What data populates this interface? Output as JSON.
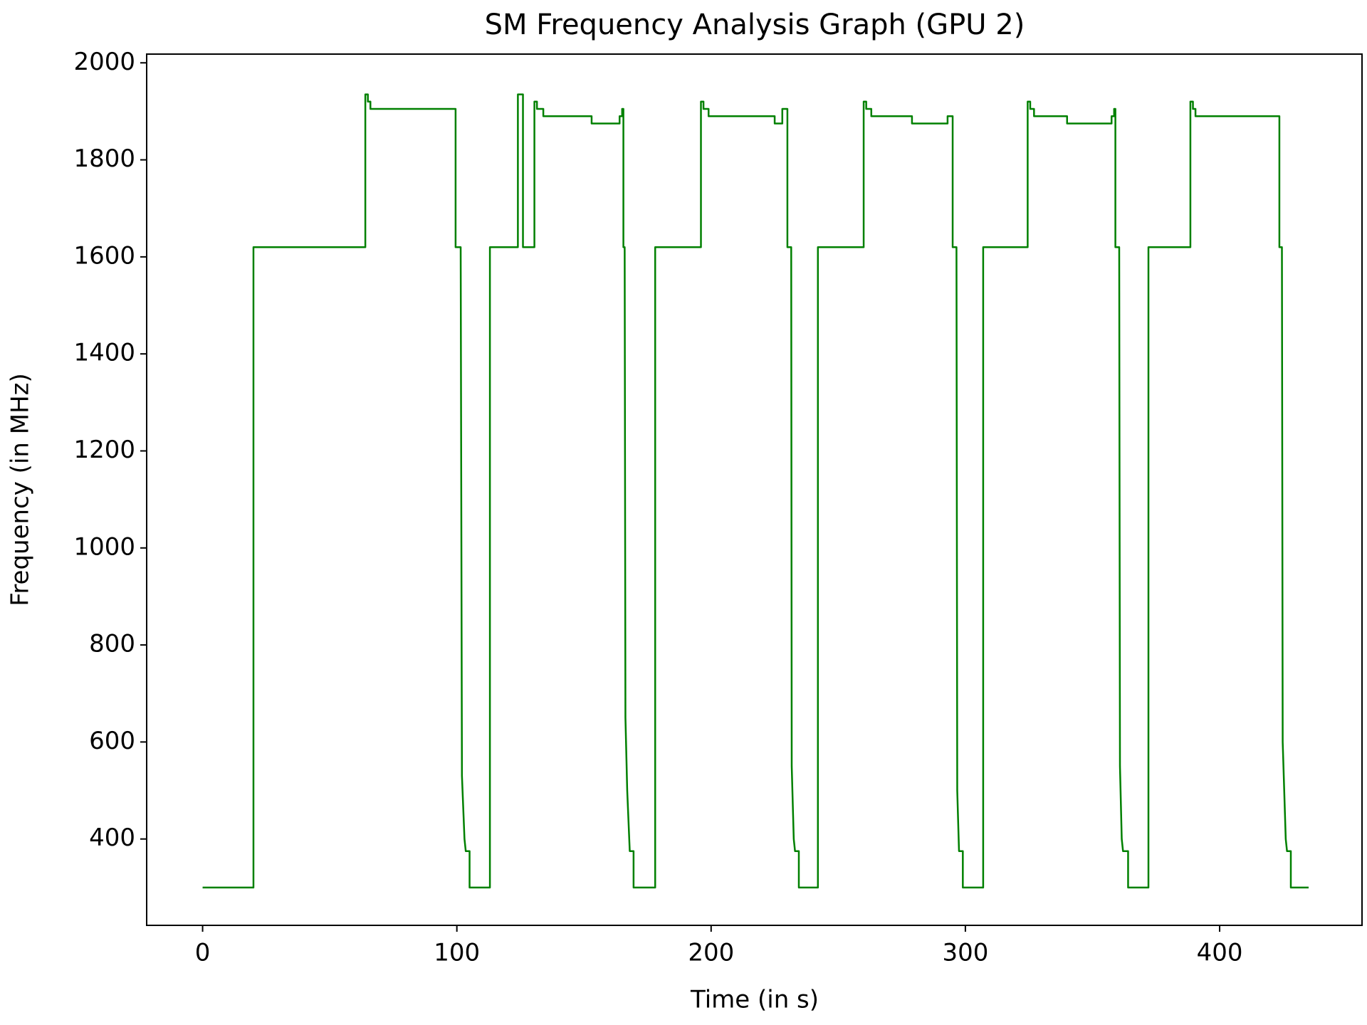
{
  "chart_data": {
    "type": "line",
    "title": "SM Frequency Analysis Graph (GPU 2)",
    "x_label": "Time (in s)",
    "y_label": "Frequency (in MHz)",
    "xlim": [
      -22,
      456
    ],
    "ylim": [
      222,
      2018
    ],
    "xticks": [
      0,
      100,
      200,
      300,
      400
    ],
    "yticks": [
      400,
      600,
      800,
      1000,
      1200,
      1400,
      1600,
      1800,
      2000
    ],
    "series": [
      {
        "name": "SM Frequency",
        "color": "#008000",
        "x": [
          0,
          20,
          20,
          64,
          64,
          65,
          65,
          66,
          66,
          99.5,
          99.5,
          101.5,
          102,
          103,
          103.5,
          105,
          105,
          113,
          113,
          124,
          124,
          126,
          126,
          130.5,
          130.5,
          131.5,
          131.5,
          134,
          134,
          153,
          153,
          164,
          164,
          165,
          165,
          165.5,
          165.5,
          166,
          166.3,
          167,
          168,
          169.5,
          169.5,
          178,
          178,
          196,
          196,
          197,
          197,
          199,
          199,
          225,
          225,
          228,
          228,
          230,
          230,
          231.5,
          231.7,
          232.5,
          233,
          234.5,
          234.5,
          242,
          242,
          260,
          260,
          261,
          261,
          263,
          263,
          279,
          279,
          293,
          293,
          295,
          295,
          296.5,
          296.8,
          297.5,
          299,
          299,
          307,
          307,
          324.5,
          324.5,
          325.5,
          325.5,
          327,
          327,
          340,
          340,
          357.5,
          357.5,
          358.5,
          358.5,
          359,
          359,
          360.5,
          360.8,
          361.5,
          362,
          364,
          364,
          372,
          372,
          388.5,
          388.5,
          389.5,
          389.5,
          390.5,
          390.5,
          423.5,
          423.5,
          424.5,
          424.8,
          426,
          426.5,
          428,
          428,
          435
        ],
        "values": [
          300,
          300,
          1620,
          1620,
          1935,
          1935,
          1920,
          1920,
          1905,
          1905,
          1620,
          1620,
          530,
          400,
          375,
          375,
          300,
          300,
          1620,
          1620,
          1935,
          1935,
          1620,
          1620,
          1920,
          1920,
          1905,
          1905,
          1890,
          1890,
          1875,
          1875,
          1890,
          1890,
          1905,
          1905,
          1620,
          1620,
          650,
          500,
          375,
          375,
          300,
          300,
          1620,
          1620,
          1920,
          1920,
          1905,
          1905,
          1890,
          1890,
          1875,
          1875,
          1905,
          1905,
          1620,
          1620,
          550,
          400,
          375,
          375,
          300,
          300,
          1620,
          1620,
          1920,
          1920,
          1905,
          1905,
          1890,
          1890,
          1875,
          1875,
          1890,
          1890,
          1620,
          1620,
          500,
          375,
          375,
          300,
          300,
          1620,
          1620,
          1920,
          1920,
          1905,
          1905,
          1890,
          1890,
          1875,
          1875,
          1890,
          1890,
          1905,
          1905,
          1620,
          1620,
          550,
          400,
          375,
          375,
          300,
          300,
          1620,
          1620,
          1920,
          1920,
          1905,
          1905,
          1890,
          1890,
          1620,
          1620,
          600,
          400,
          375,
          375,
          300,
          300
        ]
      }
    ]
  }
}
